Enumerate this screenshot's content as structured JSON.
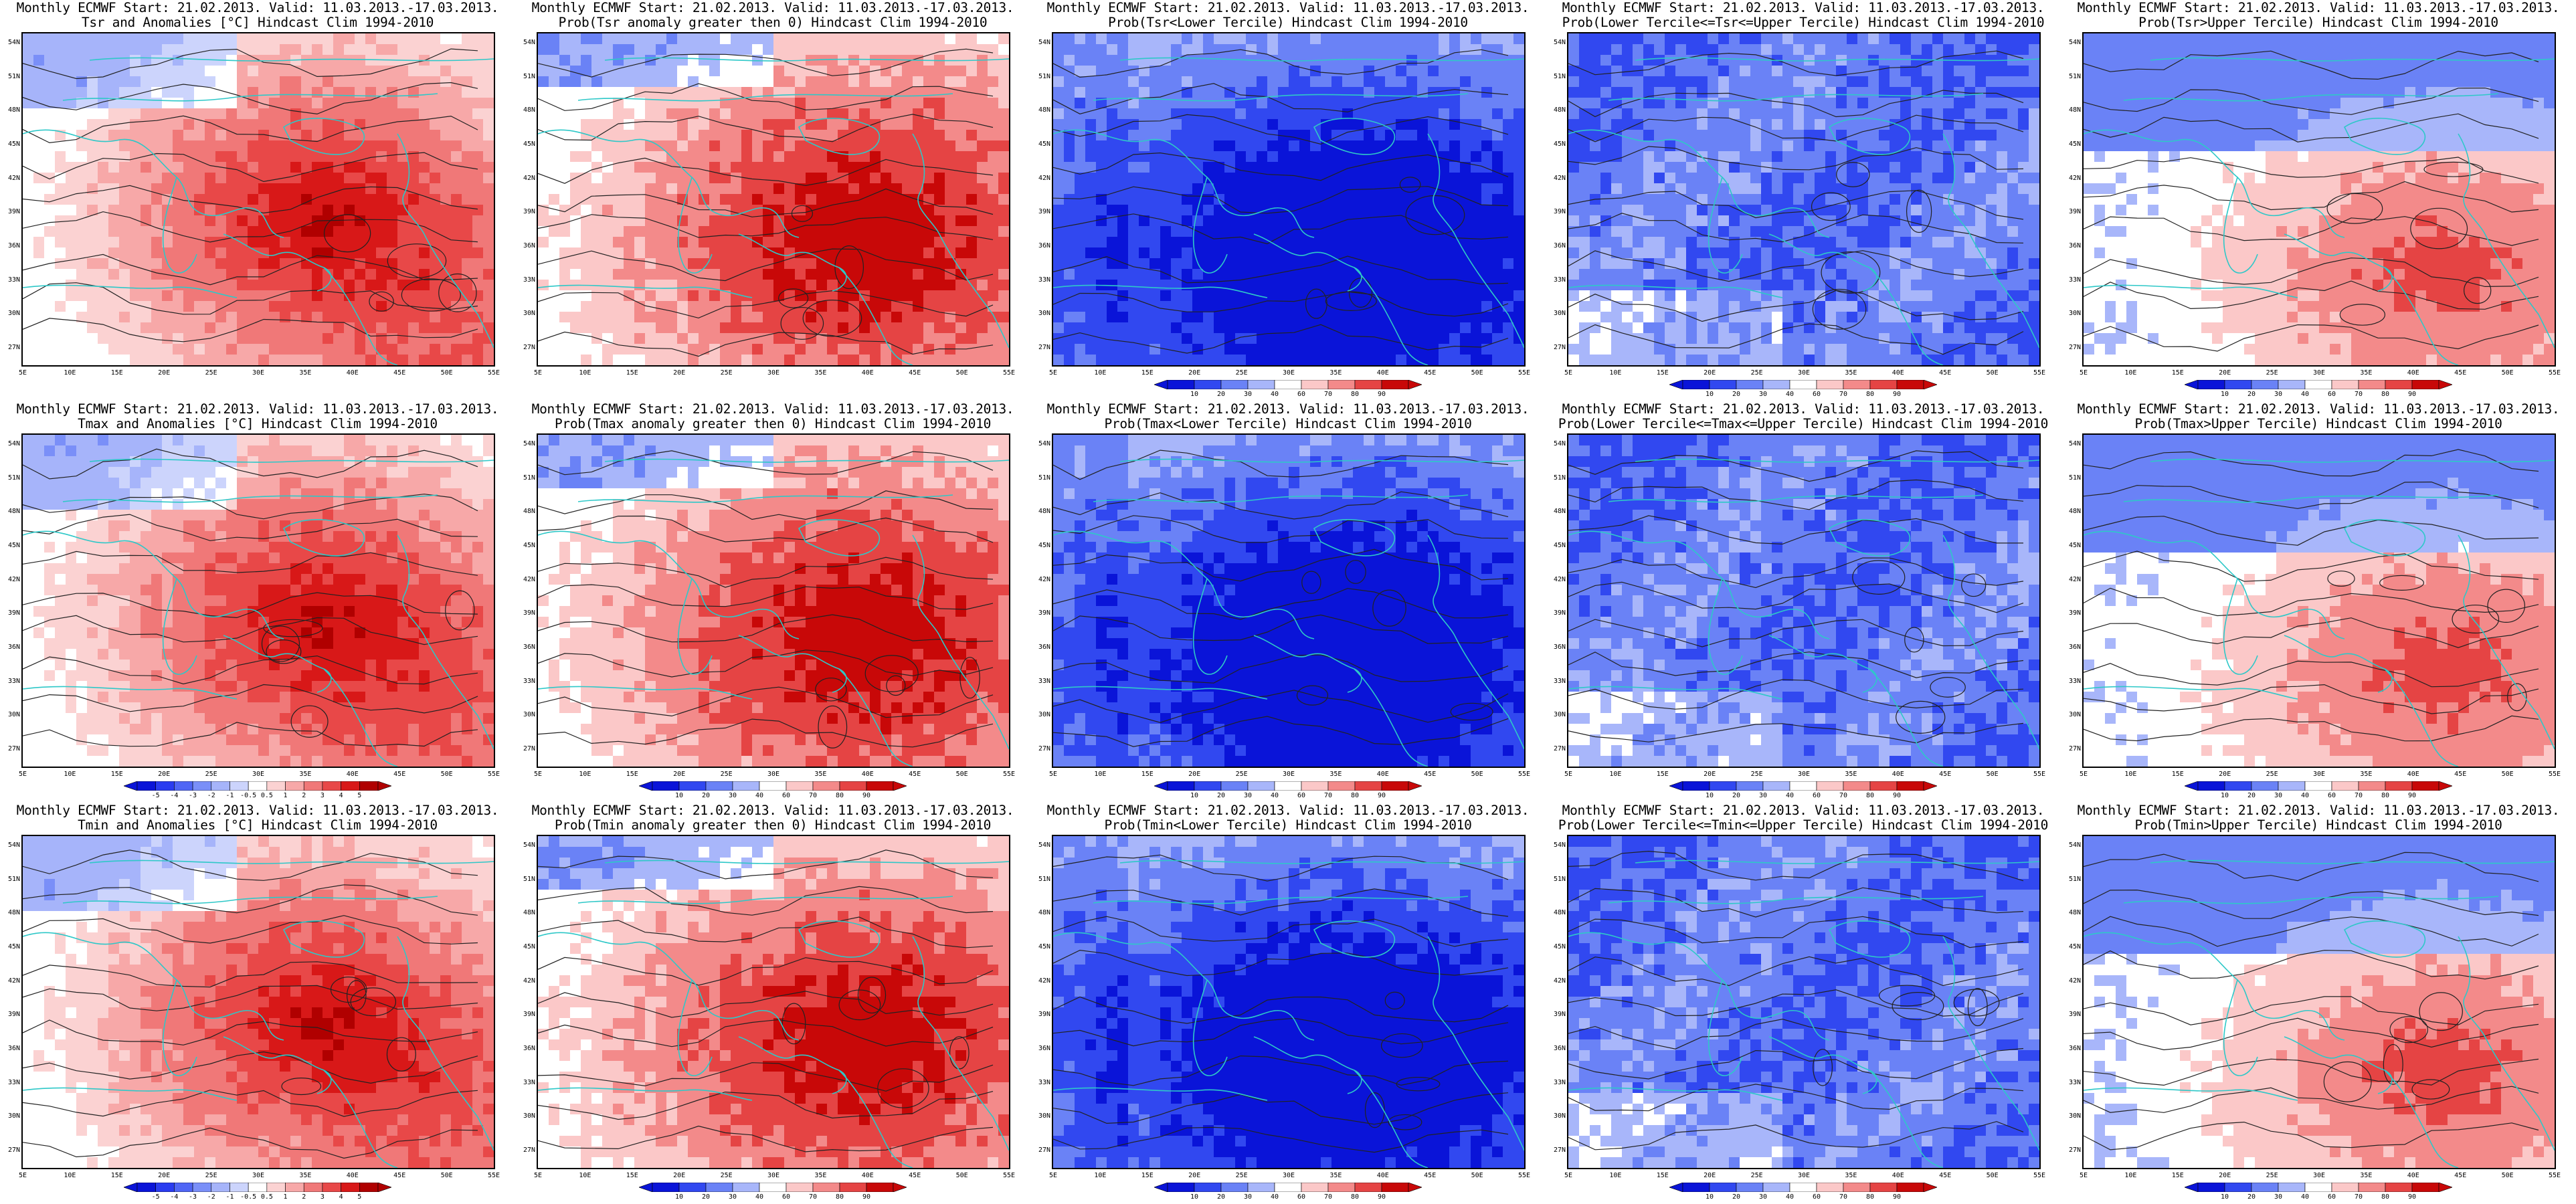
{
  "page": {
    "panels": [
      {
        "id": "tsr-anom",
        "row": 0,
        "col": 0,
        "title1": "Monthly ECMWF Start: 21.02.2013. Valid: 11.03.2013.-17.03.2013.",
        "title2": "Tsr and Anomalies [°C] Hindcast Clim 1994-2010",
        "scale": "anomaly",
        "pattern": "warm-east",
        "legend": false
      },
      {
        "id": "tsr-prob-pos",
        "row": 0,
        "col": 1,
        "title1": "Monthly ECMWF Start: 21.02.2013. Valid: 11.03.2013.-17.03.2013.",
        "title2": "Prob(Tsr anomaly greater then 0) Hindcast Clim 1994-2010",
        "scale": "probability",
        "pattern": "warm-strong",
        "legend": false
      },
      {
        "id": "tsr-lower",
        "row": 0,
        "col": 2,
        "title1": "Monthly ECMWF Start: 21.02.2013. Valid: 11.03.2013.-17.03.2013.",
        "title2": "Prob(Tsr<Lower Tercile) Hindcast Clim 1994-2010",
        "scale": "probability",
        "pattern": "blue-deep",
        "legend": true
      },
      {
        "id": "tsr-middle",
        "row": 0,
        "col": 3,
        "title1": "Monthly ECMWF Start: 21.02.2013. Valid: 11.03.2013.-17.03.2013.",
        "title2": "Prob(Lower Tercile<=Tsr<=Upper Tercile) Hindcast Clim 1994-2010",
        "scale": "probability",
        "pattern": "blue-mid",
        "legend": true
      },
      {
        "id": "tsr-upper",
        "row": 0,
        "col": 4,
        "title1": "Monthly ECMWF Start: 21.02.2013. Valid: 11.03.2013.-17.03.2013.",
        "title2": "Prob(Tsr>Upper Tercile) Hindcast Clim 1994-2010",
        "scale": "probability",
        "pattern": "upper",
        "legend": true
      },
      {
        "id": "tmax-anom",
        "row": 1,
        "col": 0,
        "title1": "Monthly ECMWF Start: 21.02.2013. Valid: 11.03.2013.-17.03.2013.",
        "title2": "Tmax and Anomalies [°C] Hindcast Clim 1994-2010",
        "scale": "anomaly",
        "pattern": "warm-east",
        "legend": true
      },
      {
        "id": "tmax-prob-pos",
        "row": 1,
        "col": 1,
        "title1": "Monthly ECMWF Start: 21.02.2013. Valid: 11.03.2013.-17.03.2013.",
        "title2": "Prob(Tmax anomaly greater then 0) Hindcast Clim 1994-2010",
        "scale": "probability",
        "pattern": "warm-strong",
        "legend": true
      },
      {
        "id": "tmax-lower",
        "row": 1,
        "col": 2,
        "title1": "Monthly ECMWF Start: 21.02.2013. Valid: 11.03.2013.-17.03.2013.",
        "title2": "Prob(Tmax<Lower Tercile) Hindcast Clim 1994-2010",
        "scale": "probability",
        "pattern": "blue-deep",
        "legend": true
      },
      {
        "id": "tmax-middle",
        "row": 1,
        "col": 3,
        "title1": "Monthly ECMWF Start: 21.02.2013. Valid: 11.03.2013.-17.03.2013.",
        "title2": "Prob(Lower Tercile<=Tmax<=Upper Tercile) Hindcast Clim 1994-2010",
        "scale": "probability",
        "pattern": "blue-mid",
        "legend": true
      },
      {
        "id": "tmax-upper",
        "row": 1,
        "col": 4,
        "title1": "Monthly ECMWF Start: 21.02.2013. Valid: 11.03.2013.-17.03.2013.",
        "title2": "Prob(Tmax>Upper Tercile) Hindcast Clim 1994-2010",
        "scale": "probability",
        "pattern": "upper",
        "legend": true
      },
      {
        "id": "tmin-anom",
        "row": 2,
        "col": 0,
        "title1": "Monthly ECMWF Start: 21.02.2013. Valid: 11.03.2013.-17.03.2013.",
        "title2": "Tmin and Anomalies [°C] Hindcast Clim 1994-2010",
        "scale": "anomaly",
        "pattern": "warm-east",
        "legend": true
      },
      {
        "id": "tmin-prob-pos",
        "row": 2,
        "col": 1,
        "title1": "Monthly ECMWF Start: 21.02.2013. Valid: 11.03.2013.-17.03.2013.",
        "title2": "Prob(Tmin anomaly greater then 0) Hindcast Clim 1994-2010",
        "scale": "probability",
        "pattern": "warm-strong",
        "legend": true
      },
      {
        "id": "tmin-lower",
        "row": 2,
        "col": 2,
        "title1": "Monthly ECMWF Start: 21.02.2013. Valid: 11.03.2013.-17.03.2013.",
        "title2": "Prob(Tmin<Lower Tercile) Hindcast Clim 1994-2010",
        "scale": "probability",
        "pattern": "blue-deep",
        "legend": true
      },
      {
        "id": "tmin-middle",
        "row": 2,
        "col": 3,
        "title1": "Monthly ECMWF Start: 21.02.2013. Valid: 11.03.2013.-17.03.2013.",
        "title2": "Prob(Lower Tercile<=Tmin<=Upper Tercile) Hindcast Clim 1994-2010",
        "scale": "probability",
        "pattern": "blue-mid",
        "legend": true
      },
      {
        "id": "tmin-upper",
        "row": 2,
        "col": 4,
        "title1": "Monthly ECMWF Start: 21.02.2013. Valid: 11.03.2013.-17.03.2013.",
        "title2": "Prob(Tmin>Upper Tercile) Hindcast Clim 1994-2010",
        "scale": "probability",
        "pattern": "upper",
        "legend": true
      }
    ]
  },
  "axes": {
    "lat_labels": [
      "54N",
      "51N",
      "48N",
      "45N",
      "42N",
      "39N",
      "36N",
      "33N",
      "30N",
      "27N"
    ],
    "lon_labels": [
      "5E",
      "10E",
      "15E",
      "20E",
      "25E",
      "30E",
      "35E",
      "40E",
      "45E",
      "50E",
      "55E"
    ]
  },
  "scales": {
    "anomaly": {
      "labels": [
        "-5",
        "-4",
        "-3",
        "-2",
        "-1",
        "-0.5",
        "0.5",
        "1",
        "2",
        "3",
        "4",
        "5"
      ],
      "colors": [
        "#0a14d8",
        "#2a3cf0",
        "#5066f5",
        "#7a8ff8",
        "#a6b4fa",
        "#ccd4fc",
        "#ffffff",
        "#fbd2d2",
        "#f7a8a8",
        "#f07878",
        "#e84848",
        "#d81818",
        "#b00000"
      ]
    },
    "probability": {
      "labels": [
        "10",
        "20",
        "30",
        "40",
        "60",
        "70",
        "80",
        "90"
      ],
      "colors": [
        "#0a14d8",
        "#3148f0",
        "#6a82f6",
        "#a8b6fa",
        "#ffffff",
        "#fbc8c8",
        "#f38a8a",
        "#e54444",
        "#c80808"
      ]
    }
  },
  "palette": {
    "coastline": "#2ec8c8",
    "contour": "#222222",
    "frame": "#000000"
  }
}
